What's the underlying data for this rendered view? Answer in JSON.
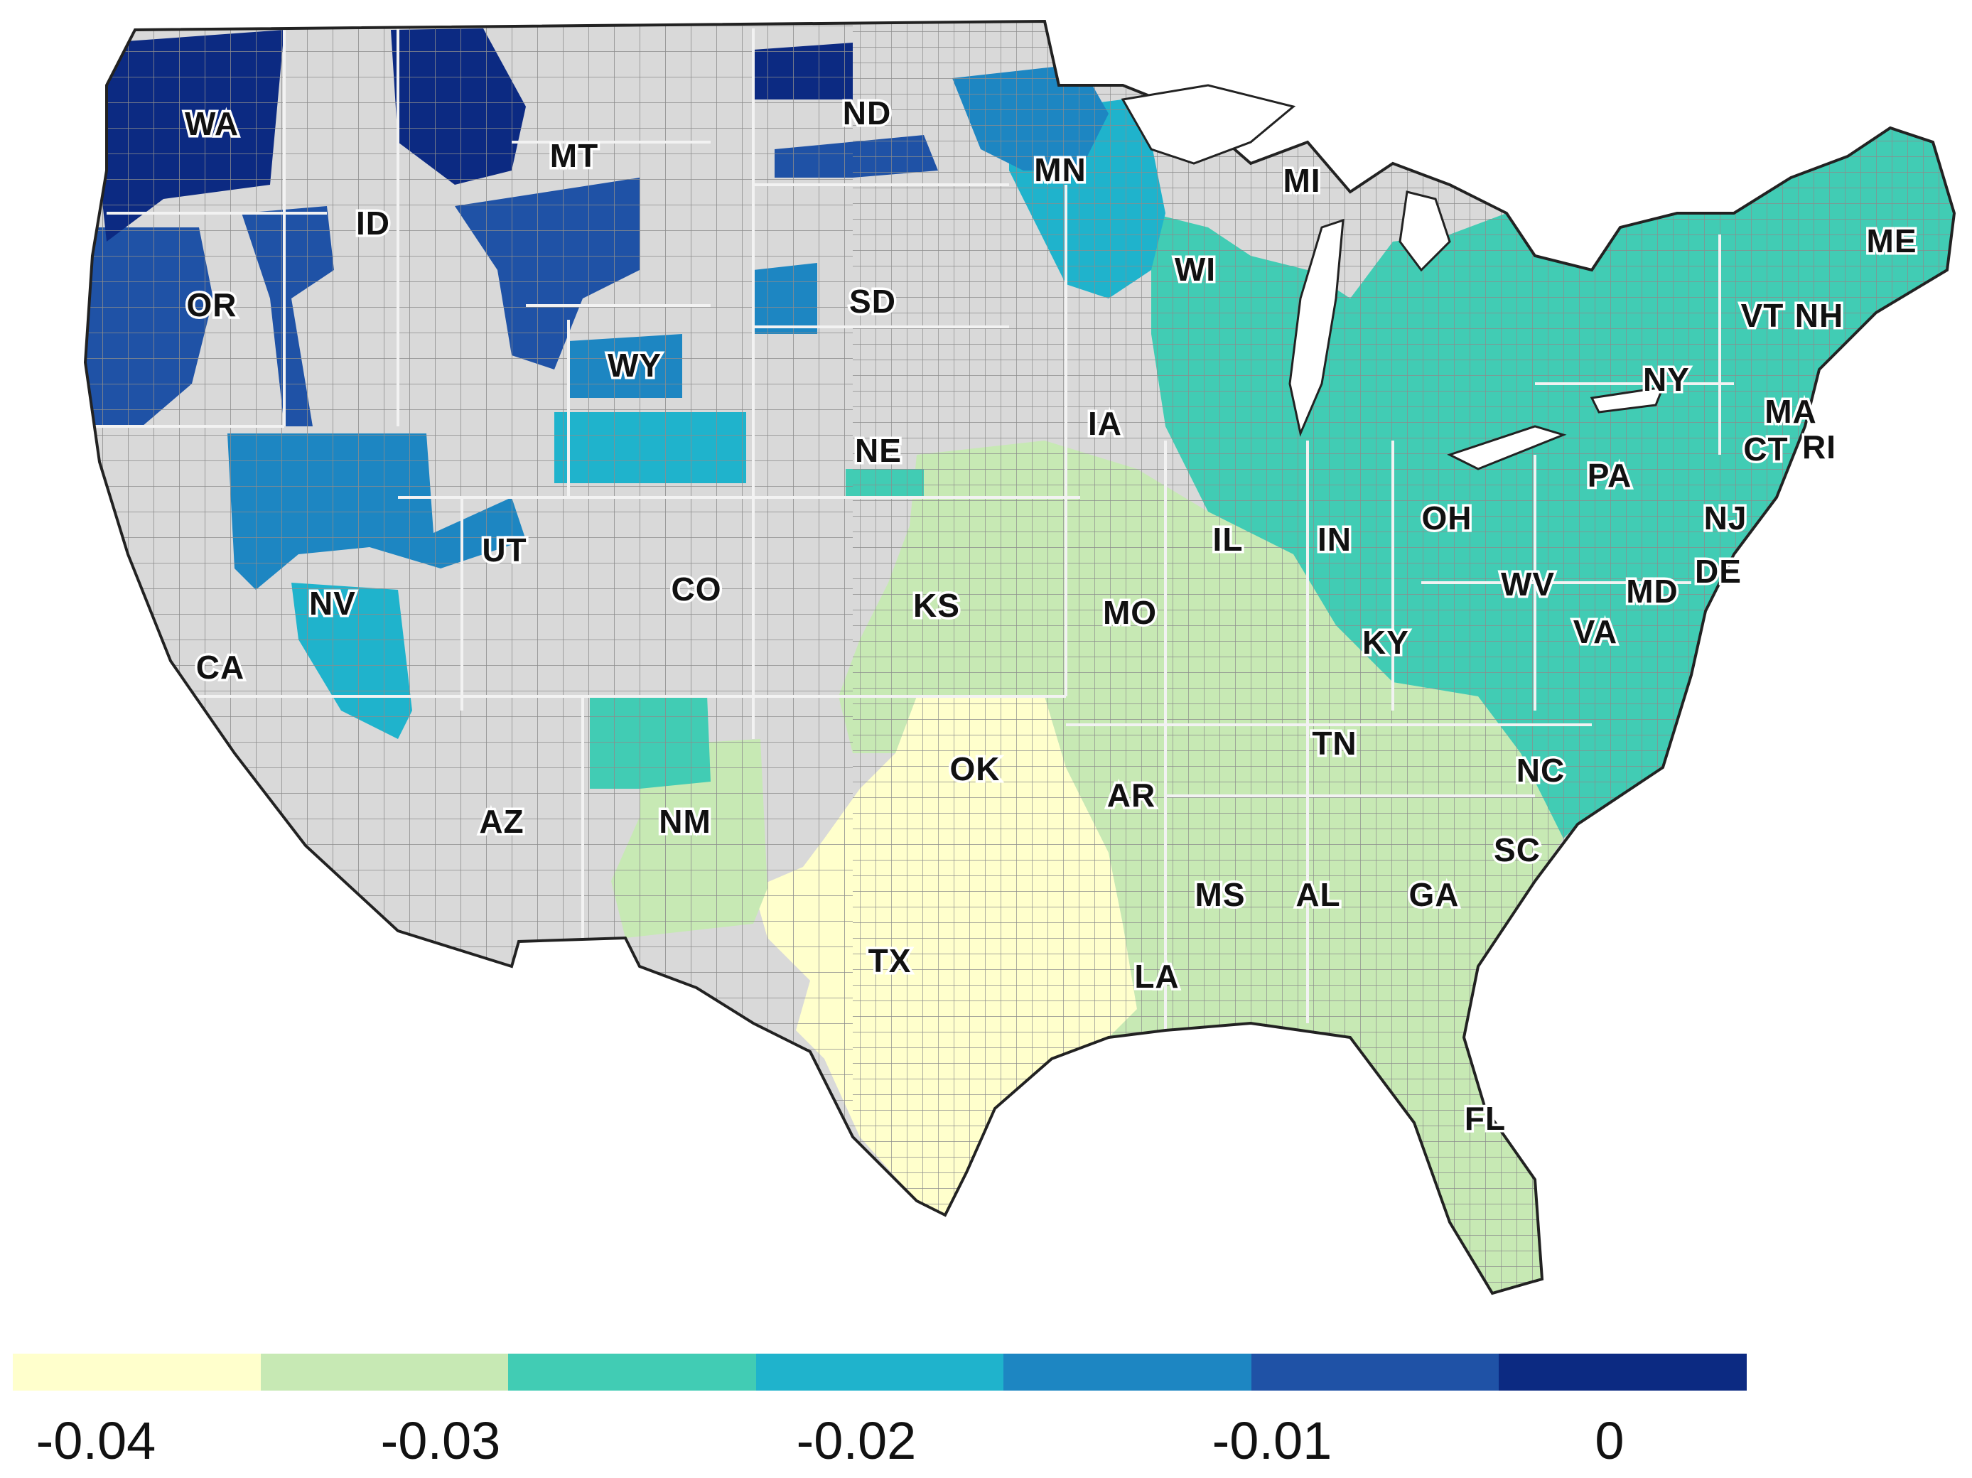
{
  "map": {
    "colors": {
      "land": "#d9d9d9",
      "county_lines": "#8c8c8c",
      "state_lines": "#f2f2f2",
      "coast": "#222222",
      "water": "#ffffff"
    },
    "state_labels": [
      "WA",
      "OR",
      "ID",
      "MT",
      "ND",
      "MN",
      "MI",
      "WI",
      "SD",
      "WY",
      "NE",
      "IA",
      "UT",
      "NV",
      "CA",
      "CO",
      "KS",
      "MO",
      "IL",
      "IN",
      "OH",
      "PA",
      "NY",
      "ME",
      "VT",
      "NH",
      "MA",
      "CT",
      "RI",
      "NJ",
      "DE",
      "MD",
      "WV",
      "VA",
      "KY",
      "TN",
      "NC",
      "SC",
      "GA",
      "AL",
      "MS",
      "AR",
      "OK",
      "TX",
      "LA",
      "NM",
      "AZ",
      "FL"
    ],
    "shaded_regions": [
      {
        "area": "Washington / northern Idaho",
        "bin": 6
      },
      {
        "area": "northwest Montana",
        "bin": 6
      },
      {
        "area": "Oregon coast",
        "bin": 5
      },
      {
        "area": "eastern Oregon / southern Idaho",
        "bin": 5
      },
      {
        "area": "central Montana / northern Wyoming",
        "bin": 5
      },
      {
        "area": "North Dakota (north)",
        "bin": 5
      },
      {
        "area": "North Dakota / Minnesota border",
        "bin": 4
      },
      {
        "area": "Nevada / Utah",
        "bin": 4
      },
      {
        "area": "Wyoming / South Dakota",
        "bin": 4
      },
      {
        "area": "southern Wyoming / NE panhandle",
        "bin": 3
      },
      {
        "area": "Minnesota / Wisconsin",
        "bin": 3
      },
      {
        "area": "Great Lakes, Ohio Valley, Northeast, Mid-Atlantic",
        "bin": 2
      },
      {
        "area": "northern New Mexico",
        "bin": 2
      },
      {
        "area": "Midwest, Southeast, Florida, eastern New Mexico",
        "bin": 1
      },
      {
        "area": "Oklahoma / Texas",
        "bin": 0
      }
    ]
  },
  "legend": {
    "bins": [
      "#ffffcc",
      "#c7e9b4",
      "#41ccb4",
      "#1fb3cc",
      "#1d86c2",
      "#1f52a6",
      "#0c2a82"
    ],
    "tick_labels": [
      "-0.04",
      "-0.03",
      "-0.02",
      "-0.01",
      "0"
    ]
  }
}
